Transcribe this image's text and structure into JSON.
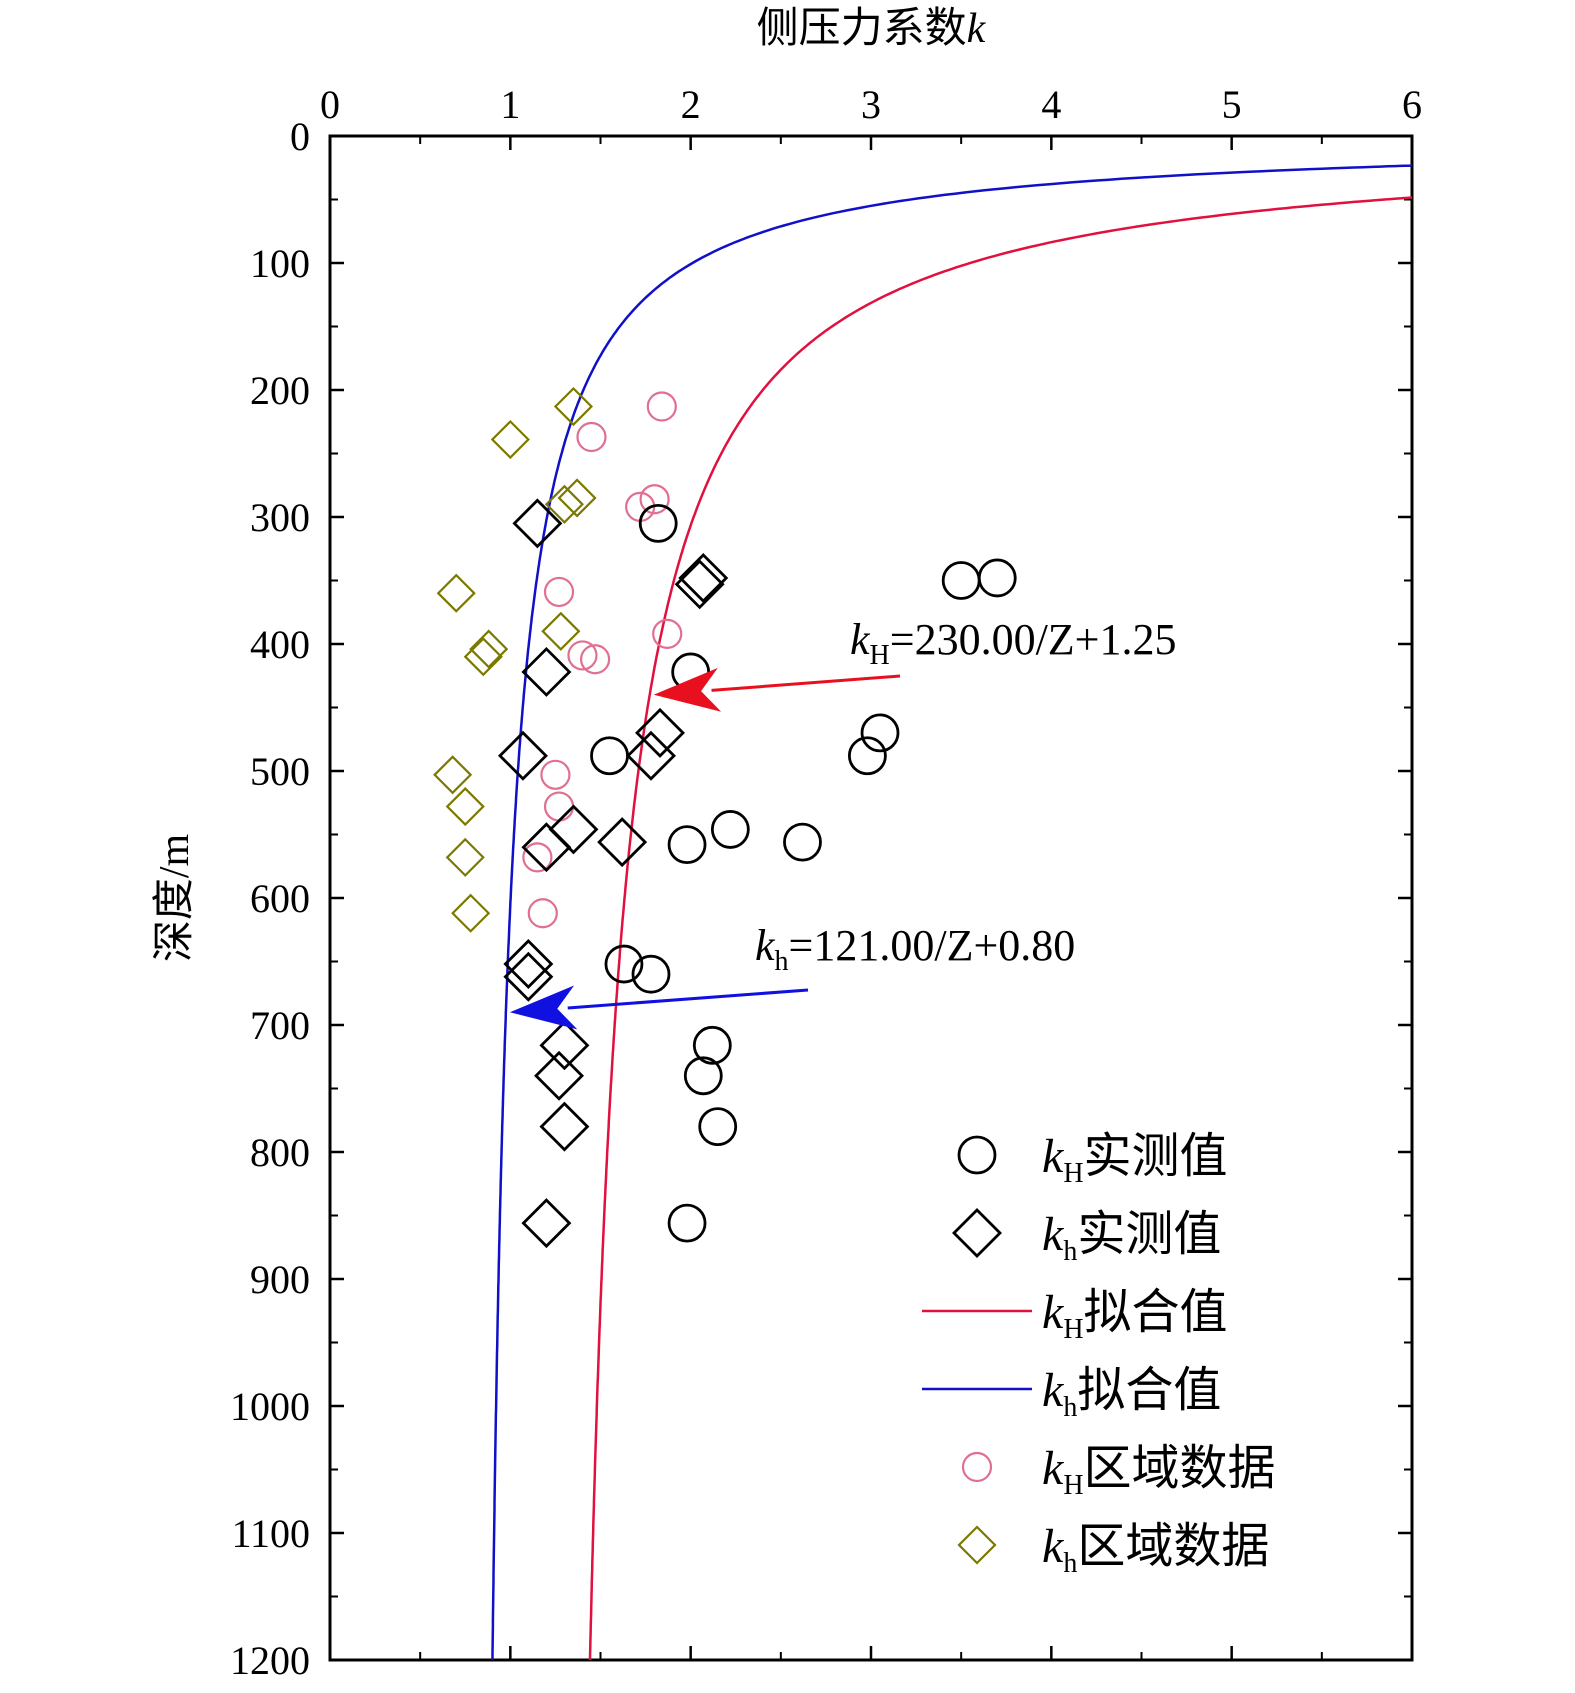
{
  "chart_data": {
    "type": "scatter",
    "title": "",
    "xlabel": "侧压力系数",
    "xlabel_var": "k",
    "ylabel": "深度/m",
    "xlim": [
      0,
      6
    ],
    "ylim": [
      0,
      1200
    ],
    "x_axis_position": "top",
    "y_axis_inverted": true,
    "grid": false,
    "legend_position": "bottom-right",
    "x_ticks": [
      "0",
      "1",
      "2",
      "3",
      "4",
      "5",
      "6"
    ],
    "y_ticks": [
      "0",
      "100",
      "200",
      "300",
      "400",
      "500",
      "600",
      "700",
      "800",
      "900",
      "1000",
      "1100",
      "1200"
    ],
    "colors": {
      "measured": "#000000",
      "kH_fit": "#e0103f",
      "kh_fit": "#1010c8",
      "kH_region": "#e07090",
      "kh_region": "#7a7a00",
      "kH_arrow": "#e8101e",
      "kh_arrow": "#1010e0"
    },
    "series": [
      {
        "name_var": "k",
        "name_sub": "H",
        "name_text": "实测值",
        "marker": "circle",
        "style": "measured",
        "points": [
          [
            1.82,
            305
          ],
          [
            3.5,
            350
          ],
          [
            3.7,
            348
          ],
          [
            2.0,
            422
          ],
          [
            3.05,
            470
          ],
          [
            2.98,
            488
          ],
          [
            1.55,
            488
          ],
          [
            2.22,
            546
          ],
          [
            1.98,
            558
          ],
          [
            2.62,
            556
          ],
          [
            1.63,
            652
          ],
          [
            1.78,
            660
          ],
          [
            2.12,
            716
          ],
          [
            2.07,
            740
          ],
          [
            2.15,
            780
          ],
          [
            1.98,
            856
          ]
        ]
      },
      {
        "name_var": "k",
        "name_sub": "h",
        "name_text": "实测值",
        "marker": "diamond",
        "style": "measured",
        "points": [
          [
            1.15,
            305
          ],
          [
            2.07,
            348
          ],
          [
            2.05,
            353
          ],
          [
            1.2,
            422
          ],
          [
            1.83,
            470
          ],
          [
            1.78,
            488
          ],
          [
            1.07,
            488
          ],
          [
            1.35,
            546
          ],
          [
            1.2,
            560
          ],
          [
            1.62,
            556
          ],
          [
            1.1,
            652
          ],
          [
            1.1,
            662
          ],
          [
            1.3,
            716
          ],
          [
            1.27,
            740
          ],
          [
            1.3,
            780
          ],
          [
            1.2,
            856
          ]
        ]
      },
      {
        "name_var": "k",
        "name_sub": "H",
        "name_text": "区域数据",
        "marker": "circle-small",
        "style": "region",
        "points": [
          [
            1.84,
            213
          ],
          [
            1.45,
            237
          ],
          [
            1.72,
            292
          ],
          [
            1.8,
            286
          ],
          [
            1.27,
            359
          ],
          [
            1.87,
            392
          ],
          [
            1.4,
            409
          ],
          [
            1.47,
            412
          ],
          [
            1.25,
            503
          ],
          [
            1.27,
            528
          ],
          [
            1.15,
            568
          ],
          [
            1.18,
            612
          ]
        ]
      },
      {
        "name_var": "k",
        "name_sub": "h",
        "name_text": "区域数据",
        "marker": "diamond-small",
        "style": "region",
        "points": [
          [
            1.35,
            213
          ],
          [
            1.0,
            239
          ],
          [
            1.37,
            285
          ],
          [
            1.3,
            290
          ],
          [
            0.7,
            360
          ],
          [
            1.28,
            390
          ],
          [
            0.85,
            410
          ],
          [
            0.88,
            404
          ],
          [
            0.68,
            503
          ],
          [
            0.75,
            528
          ],
          [
            0.75,
            568
          ],
          [
            0.78,
            612
          ]
        ]
      }
    ],
    "fits": [
      {
        "name_var": "k",
        "name_sub": "H",
        "name_text": "拟合值",
        "a": 230.0,
        "b": 1.25,
        "color_key": "kH_fit",
        "equation": "=230.00/Z+1.25",
        "arrow_color_key": "kH_arrow",
        "arrow_to_depth": 440
      },
      {
        "name_var": "k",
        "name_sub": "h",
        "name_text": "拟合值",
        "a": 121.0,
        "b": 0.8,
        "color_key": "kh_fit",
        "equation": "=121.00/Z+0.80",
        "arrow_color_key": "kh_arrow",
        "arrow_to_depth": 690
      }
    ],
    "legend_order": [
      "series0",
      "series1",
      "fit0",
      "fit1",
      "series2",
      "series3"
    ]
  }
}
